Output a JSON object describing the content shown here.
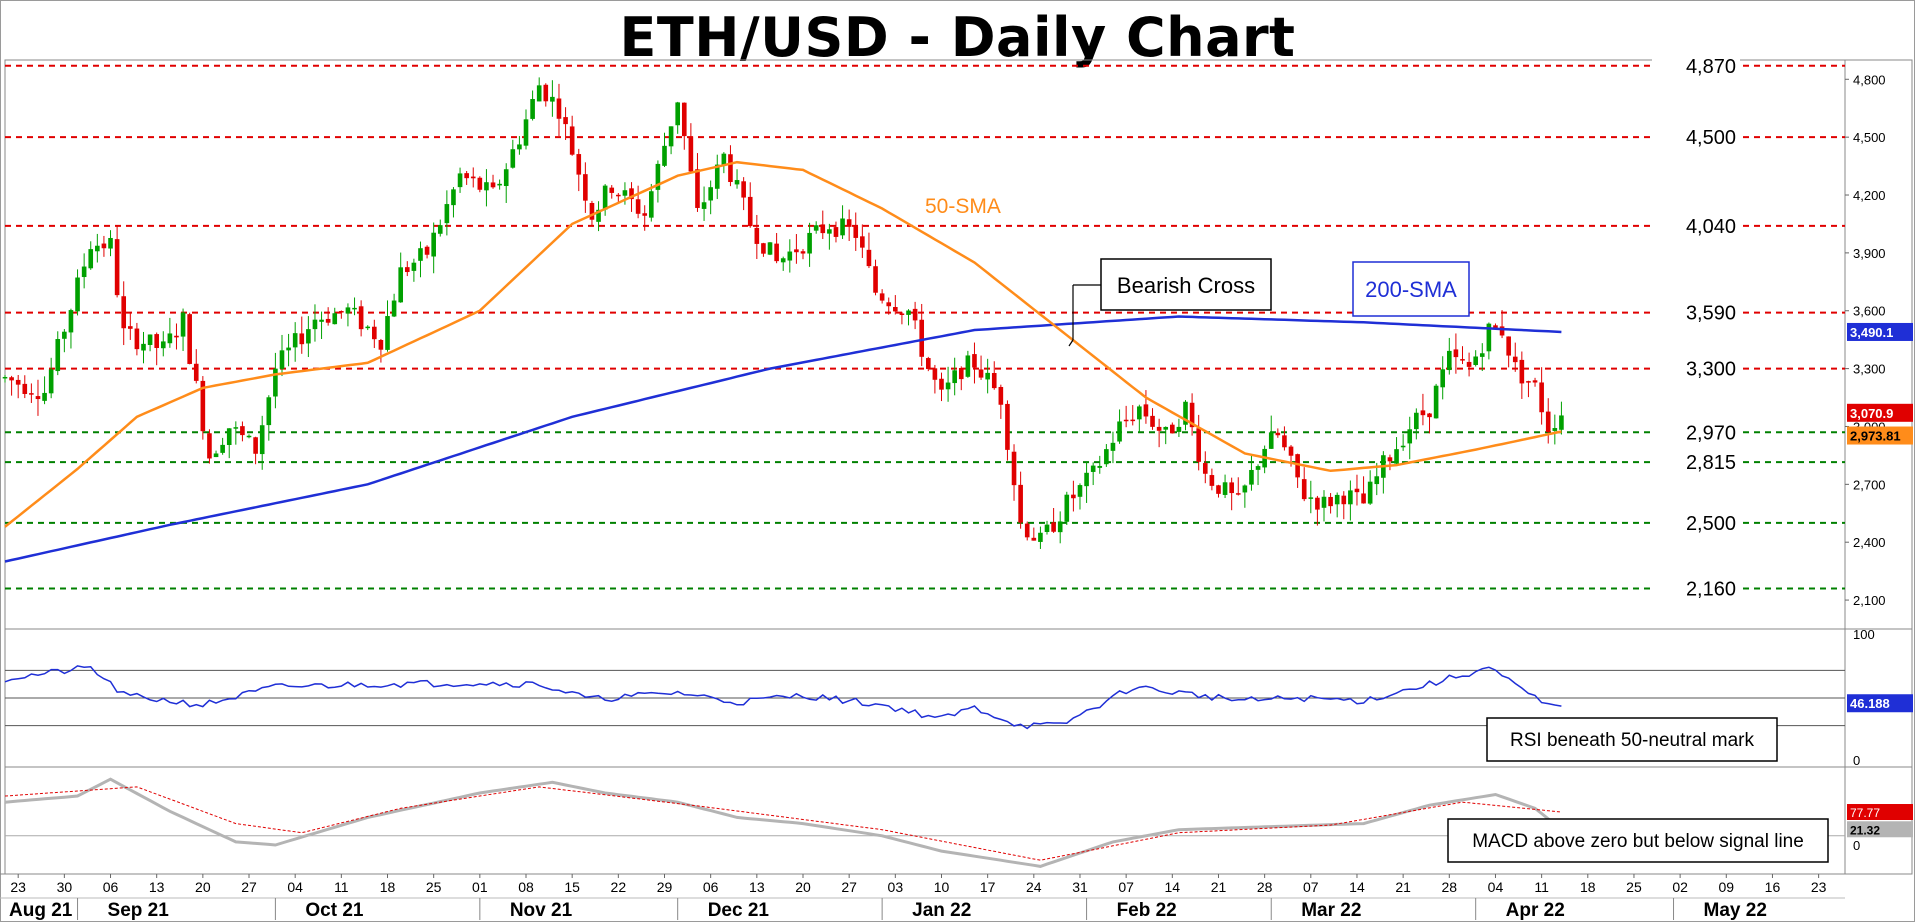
{
  "title": "ETH/USD - Daily Chart",
  "colors": {
    "bull": "#00a000",
    "bear": "#e00000",
    "sma50": "#ff8c1a",
    "sma200": "#1f2fd6",
    "rsi": "#1f2fd6",
    "macd": "#b4b4b4",
    "signal": "#e00000",
    "resistance": "#e00000",
    "support": "#008000"
  },
  "chart_data": [
    {
      "type": "candlestick",
      "title": "ETH/USD - Daily Chart",
      "x_range": [
        "2021-08-21",
        "2022-05-27"
      ],
      "x_tick_labels": [
        {
          "date": "2021-08-23",
          "label": "23"
        },
        {
          "date": "2021-08-30",
          "label": "30"
        },
        {
          "date": "2021-09-06",
          "label": "06"
        },
        {
          "date": "2021-09-13",
          "label": "13"
        },
        {
          "date": "2021-09-20",
          "label": "20"
        },
        {
          "date": "2021-09-27",
          "label": "27"
        },
        {
          "date": "2021-10-04",
          "label": "04"
        },
        {
          "date": "2021-10-11",
          "label": "11"
        },
        {
          "date": "2021-10-18",
          "label": "18"
        },
        {
          "date": "2021-10-25",
          "label": "25"
        },
        {
          "date": "2021-11-01",
          "label": "01"
        },
        {
          "date": "2021-11-08",
          "label": "08"
        },
        {
          "date": "2021-11-15",
          "label": "15"
        },
        {
          "date": "2021-11-22",
          "label": "22"
        },
        {
          "date": "2021-11-29",
          "label": "29"
        },
        {
          "date": "2021-12-06",
          "label": "06"
        },
        {
          "date": "2021-12-13",
          "label": "13"
        },
        {
          "date": "2021-12-20",
          "label": "20"
        },
        {
          "date": "2021-12-27",
          "label": "27"
        },
        {
          "date": "2022-01-03",
          "label": "03"
        },
        {
          "date": "2022-01-10",
          "label": "10"
        },
        {
          "date": "2022-01-17",
          "label": "17"
        },
        {
          "date": "2022-01-24",
          "label": "24"
        },
        {
          "date": "2022-01-31",
          "label": "31"
        },
        {
          "date": "2022-02-07",
          "label": "07"
        },
        {
          "date": "2022-02-14",
          "label": "14"
        },
        {
          "date": "2022-02-21",
          "label": "21"
        },
        {
          "date": "2022-02-28",
          "label": "28"
        },
        {
          "date": "2022-03-07",
          "label": "07"
        },
        {
          "date": "2022-03-14",
          "label": "14"
        },
        {
          "date": "2022-03-21",
          "label": "21"
        },
        {
          "date": "2022-03-28",
          "label": "28"
        },
        {
          "date": "2022-04-04",
          "label": "04"
        },
        {
          "date": "2022-04-11",
          "label": "11"
        },
        {
          "date": "2022-04-18",
          "label": "18"
        },
        {
          "date": "2022-04-25",
          "label": "25"
        },
        {
          "date": "2022-05-02",
          "label": "02"
        },
        {
          "date": "2022-05-09",
          "label": "09"
        },
        {
          "date": "2022-05-16",
          "label": "16"
        },
        {
          "date": "2022-05-23",
          "label": "23"
        }
      ],
      "x_month_labels": [
        {
          "date": "2021-08-21",
          "label": "Aug 21"
        },
        {
          "date": "2021-09-01",
          "label": "Sep 21"
        },
        {
          "date": "2021-10-01",
          "label": "Oct 21"
        },
        {
          "date": "2021-11-01",
          "label": "Nov 21"
        },
        {
          "date": "2021-12-01",
          "label": "Dec 21"
        },
        {
          "date": "2022-01-01",
          "label": "Jan 22"
        },
        {
          "date": "2022-02-01",
          "label": "Feb 22"
        },
        {
          "date": "2022-03-01",
          "label": "Mar 22"
        },
        {
          "date": "2022-04-01",
          "label": "Apr 22"
        },
        {
          "date": "2022-05-01",
          "label": "May 22"
        }
      ],
      "ylim": [
        1950,
        4900
      ],
      "y_ticks": [
        2100,
        2400,
        2700,
        3000,
        3300,
        3600,
        3900,
        4200,
        4500,
        4800
      ],
      "y_tick_labels": [
        "2,100",
        "2,400",
        "2,700",
        "3,000",
        "3,300",
        "3,600",
        "3,900",
        "4,200",
        "4,500",
        "4,800"
      ],
      "levels": [
        {
          "value": 4870,
          "label": "4,870",
          "kind": "resistance"
        },
        {
          "value": 4500,
          "label": "4,500",
          "kind": "resistance"
        },
        {
          "value": 4040,
          "label": "4,040",
          "kind": "resistance"
        },
        {
          "value": 3590,
          "label": "3,590",
          "kind": "resistance"
        },
        {
          "value": 3300,
          "label": "3,300",
          "kind": "resistance"
        },
        {
          "value": 2970,
          "label": "2,970",
          "kind": "support"
        },
        {
          "value": 2815,
          "label": "2,815",
          "kind": "support"
        },
        {
          "value": 2500,
          "label": "2,500",
          "kind": "support"
        },
        {
          "value": 2160,
          "label": "2,160",
          "kind": "support"
        }
      ],
      "price_anchors": [
        [
          "2021-08-21",
          3250
        ],
        [
          "2021-08-27",
          3180
        ],
        [
          "2021-09-03",
          3950
        ],
        [
          "2021-09-06",
          3940
        ],
        [
          "2021-09-08",
          3480
        ],
        [
          "2021-09-14",
          3400
        ],
        [
          "2021-09-17",
          3550
        ],
        [
          "2021-09-21",
          2850
        ],
        [
          "2021-09-24",
          3000
        ],
        [
          "2021-09-28",
          2880
        ],
        [
          "2021-10-01",
          3300
        ],
        [
          "2021-10-07",
          3560
        ],
        [
          "2021-10-12",
          3600
        ],
        [
          "2021-10-17",
          3450
        ],
        [
          "2021-10-20",
          3800
        ],
        [
          "2021-10-24",
          3900
        ],
        [
          "2021-10-29",
          4300
        ],
        [
          "2021-11-03",
          4200
        ],
        [
          "2021-11-07",
          4500
        ],
        [
          "2021-11-10",
          4770
        ],
        [
          "2021-11-13",
          4650
        ],
        [
          "2021-11-18",
          4100
        ],
        [
          "2021-11-21",
          4250
        ],
        [
          "2021-11-26",
          4100
        ],
        [
          "2021-12-01",
          4700
        ],
        [
          "2021-12-04",
          4100
        ],
        [
          "2021-12-08",
          4400
        ],
        [
          "2021-12-12",
          4050
        ],
        [
          "2021-12-16",
          3850
        ],
        [
          "2021-12-20",
          3950
        ],
        [
          "2021-12-24",
          4050
        ],
        [
          "2021-12-28",
          4000
        ],
        [
          "2021-12-31",
          3700
        ],
        [
          "2022-01-05",
          3600
        ],
        [
          "2022-01-08",
          3300
        ],
        [
          "2022-01-10",
          3150
        ],
        [
          "2022-01-13",
          3300
        ],
        [
          "2022-01-15",
          3330
        ],
        [
          "2022-01-19",
          3150
        ],
        [
          "2022-01-22",
          2500
        ],
        [
          "2022-01-25",
          2400
        ],
        [
          "2022-01-29",
          2600
        ],
        [
          "2022-02-02",
          2750
        ],
        [
          "2022-02-06",
          3000
        ],
        [
          "2022-02-09",
          3100
        ],
        [
          "2022-02-13",
          2950
        ],
        [
          "2022-02-16",
          3100
        ],
        [
          "2022-02-19",
          2750
        ],
        [
          "2022-02-24",
          2600
        ],
        [
          "2022-02-28",
          2900
        ],
        [
          "2022-03-02",
          2950
        ],
        [
          "2022-03-06",
          2650
        ],
        [
          "2022-03-09",
          2600
        ],
        [
          "2022-03-12",
          2650
        ],
        [
          "2022-03-15",
          2600
        ],
        [
          "2022-03-18",
          2800
        ],
        [
          "2022-03-22",
          3000
        ],
        [
          "2022-03-25",
          3100
        ],
        [
          "2022-03-28",
          3350
        ],
        [
          "2022-03-31",
          3300
        ],
        [
          "2022-04-03",
          3500
        ],
        [
          "2022-04-05",
          3500
        ],
        [
          "2022-04-07",
          3300
        ],
        [
          "2022-04-10",
          3200
        ],
        [
          "2022-04-12",
          3000
        ],
        [
          "2022-04-14",
          3070
        ]
      ],
      "sma50_label": "50-SMA",
      "sma50_anchors": [
        [
          "2021-08-21",
          2480
        ],
        [
          "2021-09-01",
          2780
        ],
        [
          "2021-09-10",
          3050
        ],
        [
          "2021-09-20",
          3200
        ],
        [
          "2021-10-01",
          3270
        ],
        [
          "2021-10-15",
          3330
        ],
        [
          "2021-11-01",
          3600
        ],
        [
          "2021-11-15",
          4050
        ],
        [
          "2021-12-01",
          4300
        ],
        [
          "2021-12-10",
          4370
        ],
        [
          "2021-12-20",
          4330
        ],
        [
          "2022-01-01",
          4130
        ],
        [
          "2022-01-15",
          3850
        ],
        [
          "2022-01-28",
          3500
        ],
        [
          "2022-02-10",
          3150
        ],
        [
          "2022-02-25",
          2860
        ],
        [
          "2022-03-10",
          2770
        ],
        [
          "2022-03-20",
          2800
        ],
        [
          "2022-04-01",
          2880
        ],
        [
          "2022-04-14",
          2973.81
        ]
      ],
      "sma50_last_label": "2,973.81",
      "sma200_label": "200-SMA",
      "sma200_anchors": [
        [
          "2021-08-21",
          2300
        ],
        [
          "2021-09-15",
          2490
        ],
        [
          "2021-10-15",
          2700
        ],
        [
          "2021-11-15",
          3050
        ],
        [
          "2021-12-15",
          3300
        ],
        [
          "2022-01-15",
          3500
        ],
        [
          "2022-02-15",
          3570
        ],
        [
          "2022-03-15",
          3540
        ],
        [
          "2022-04-14",
          3490
        ]
      ],
      "sma200_last_label": "3,490.1",
      "last_price_label": "3,070.9",
      "annotations": [
        "Bearish Cross",
        "50-SMA",
        "200-SMA"
      ]
    },
    {
      "type": "line",
      "name": "RSI",
      "ylim": [
        0,
        100
      ],
      "y_tick_labels": [
        "100",
        "0"
      ],
      "reference_lines": [
        70,
        50,
        30
      ],
      "anchors": [
        [
          "2021-08-21",
          64
        ],
        [
          "2021-09-03",
          72
        ],
        [
          "2021-09-08",
          52
        ],
        [
          "2021-09-20",
          45
        ],
        [
          "2021-10-01",
          58
        ],
        [
          "2021-10-15",
          60
        ],
        [
          "2021-11-01",
          61
        ],
        [
          "2021-11-10",
          60
        ],
        [
          "2021-11-18",
          49
        ],
        [
          "2021-12-01",
          54
        ],
        [
          "2021-12-10",
          47
        ],
        [
          "2021-12-20",
          52
        ],
        [
          "2022-01-01",
          45
        ],
        [
          "2022-01-10",
          35
        ],
        [
          "2022-01-15",
          43
        ],
        [
          "2022-01-22",
          30
        ],
        [
          "2022-01-28",
          30
        ],
        [
          "2022-02-08",
          58
        ],
        [
          "2022-02-13",
          55
        ],
        [
          "2022-02-25",
          48
        ],
        [
          "2022-03-05",
          50
        ],
        [
          "2022-03-15",
          48
        ],
        [
          "2022-03-25",
          60
        ],
        [
          "2022-04-03",
          72
        ],
        [
          "2022-04-07",
          59
        ],
        [
          "2022-04-12",
          44
        ],
        [
          "2022-04-14",
          46.2
        ]
      ],
      "last_label": "46.188",
      "annotation": "RSI beneath 50-neutral mark"
    },
    {
      "type": "line",
      "name": "MACD",
      "ylim": [
        -125,
        225
      ],
      "zero_label": "0",
      "series": [
        {
          "key": "macd",
          "anchors": [
            [
              "2021-08-21",
              110
            ],
            [
              "2021-09-01",
              130
            ],
            [
              "2021-09-06",
              185
            ],
            [
              "2021-09-15",
              80
            ],
            [
              "2021-09-25",
              -20
            ],
            [
              "2021-10-01",
              -30
            ],
            [
              "2021-10-15",
              60
            ],
            [
              "2021-11-01",
              140
            ],
            [
              "2021-11-12",
              175
            ],
            [
              "2021-11-20",
              140
            ],
            [
              "2021-12-01",
              110
            ],
            [
              "2021-12-10",
              60
            ],
            [
              "2021-12-20",
              40
            ],
            [
              "2022-01-01",
              0
            ],
            [
              "2022-01-10",
              -50
            ],
            [
              "2022-01-25",
              -100
            ],
            [
              "2022-02-05",
              -20
            ],
            [
              "2022-02-15",
              20
            ],
            [
              "2022-03-01",
              30
            ],
            [
              "2022-03-15",
              40
            ],
            [
              "2022-03-25",
              100
            ],
            [
              "2022-04-04",
              135
            ],
            [
              "2022-04-10",
              90
            ],
            [
              "2022-04-14",
              21.32
            ]
          ]
        },
        {
          "key": "signal",
          "anchors": [
            [
              "2021-08-21",
              130
            ],
            [
              "2021-09-10",
              160
            ],
            [
              "2021-09-25",
              40
            ],
            [
              "2021-10-05",
              10
            ],
            [
              "2021-10-20",
              90
            ],
            [
              "2021-11-10",
              160
            ],
            [
              "2021-12-05",
              95
            ],
            [
              "2022-01-01",
              20
            ],
            [
              "2022-01-25",
              -80
            ],
            [
              "2022-02-15",
              10
            ],
            [
              "2022-03-10",
              35
            ],
            [
              "2022-03-30",
              110
            ],
            [
              "2022-04-14",
              77.77
            ]
          ]
        }
      ],
      "signal_last_label": "77.77",
      "macd_last_label": "21.32",
      "annotation": "MACD above zero but below signal line"
    }
  ]
}
